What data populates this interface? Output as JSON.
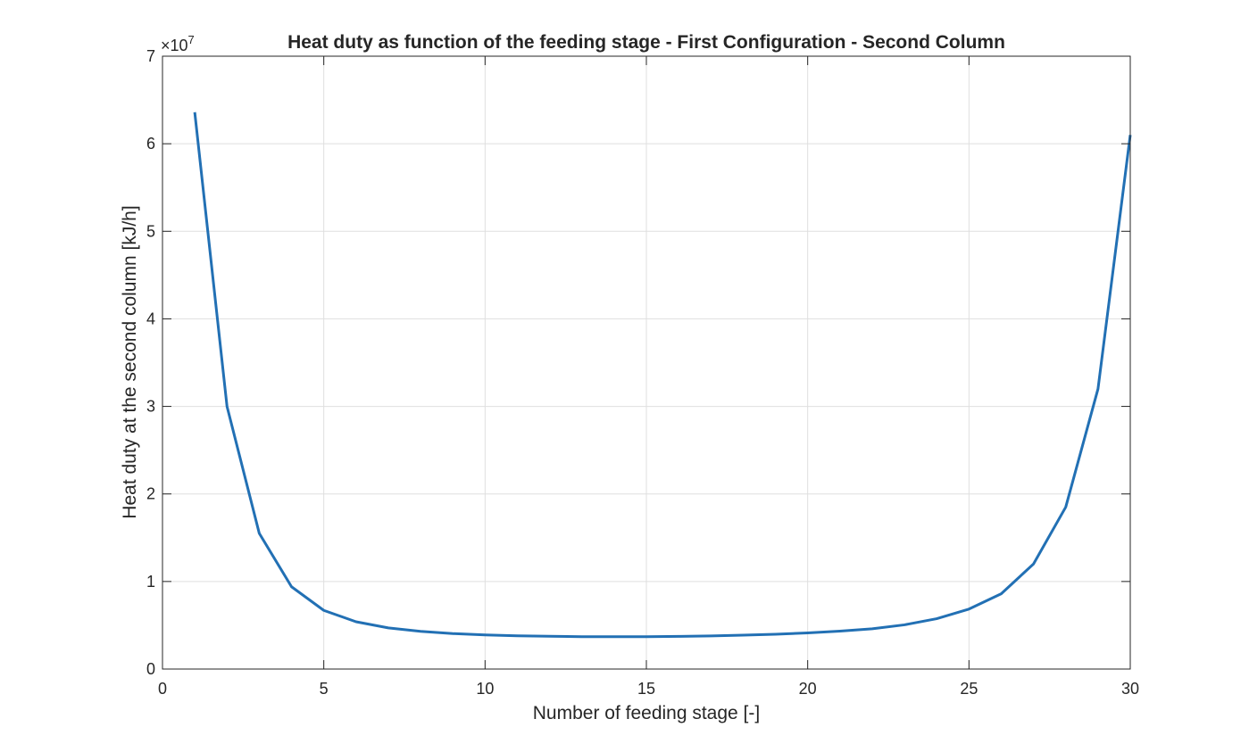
{
  "chart_data": {
    "type": "line",
    "title": "Heat duty as function of the feeding stage - First Configuration - Second Column",
    "xlabel": "Number of feeding stage [-]",
    "ylabel": "Heat duty at the second column [kJ/h]",
    "y_exponent_base": "×10",
    "y_exponent_power": "7",
    "xlim": [
      0,
      30
    ],
    "ylim": [
      0,
      7
    ],
    "x_ticks": [
      0,
      5,
      10,
      15,
      20,
      25,
      30
    ],
    "y_ticks": [
      0,
      1,
      2,
      3,
      4,
      5,
      6,
      7
    ],
    "grid": true,
    "line_color": "#2270b4",
    "series": [
      {
        "x": [
          1,
          2,
          3,
          4,
          5,
          6,
          7,
          8,
          9,
          10,
          11,
          12,
          13,
          14,
          15,
          16,
          17,
          18,
          19,
          20,
          21,
          22,
          23,
          24,
          25,
          26,
          27,
          28,
          29,
          30
        ],
        "values": [
          6.36,
          3.0,
          1.55,
          0.94,
          0.67,
          0.54,
          0.47,
          0.43,
          0.405,
          0.39,
          0.38,
          0.375,
          0.37,
          0.37,
          0.37,
          0.373,
          0.378,
          0.387,
          0.398,
          0.413,
          0.433,
          0.46,
          0.505,
          0.575,
          0.685,
          0.86,
          1.2,
          1.85,
          3.2,
          6.1
        ]
      }
    ]
  }
}
